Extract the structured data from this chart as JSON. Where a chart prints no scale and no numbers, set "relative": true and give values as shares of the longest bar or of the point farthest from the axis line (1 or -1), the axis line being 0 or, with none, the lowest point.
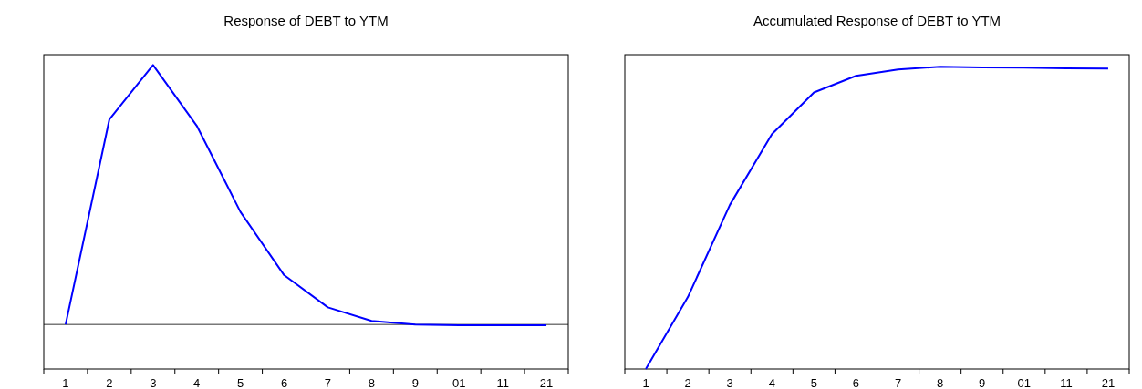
{
  "chart_data": [
    {
      "type": "line",
      "title": "Response of DEBT to YTM",
      "relative": true,
      "categories": [
        "1",
        "2",
        "3",
        "4",
        "5",
        "6",
        "7",
        "8",
        "9",
        "01",
        "11",
        "21"
      ],
      "series": [
        {
          "color": "#0000ff",
          "values": [
            0,
            0.79,
            1,
            0.766,
            0.434,
            0.19,
            0.066,
            0.014,
            0.0,
            -0.003,
            -0.003,
            -0.003
          ]
        }
      ],
      "grid": false,
      "marker": "none",
      "line_style": "solid"
    },
    {
      "type": "line",
      "title": "Accumulated Response of DEBT to YTM",
      "relative": true,
      "categories": [
        "1",
        "2",
        "3",
        "4",
        "5",
        "6",
        "7",
        "8",
        "9",
        "01",
        "11",
        "21"
      ],
      "series": [
        {
          "color": "#0000ff",
          "values": [
            0,
            0.238,
            0.543,
            0.777,
            0.915,
            0.97,
            0.991,
            1,
            0.998,
            0.997,
            0.995,
            0.994
          ]
        }
      ],
      "grid": false,
      "marker": "none",
      "line_style": "solid"
    }
  ]
}
